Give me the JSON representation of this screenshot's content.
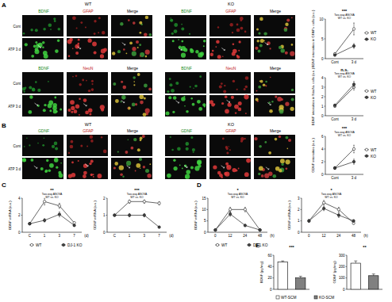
{
  "panels": [
    {
      "label": "A",
      "groups": [
        {
          "title": "WT",
          "columns": [
            "BDNF",
            "GFAP",
            "Merge"
          ]
        },
        {
          "title": "KO",
          "columns": [
            "BDNF",
            "GFAP",
            "Merge"
          ]
        }
      ],
      "rows": [
        "Cont",
        "ATP 3 d"
      ]
    },
    {
      "groups": [
        {
          "columns": [
            "BDNF",
            "NeuN",
            "Merge"
          ]
        },
        {
          "columns": [
            "BDNF",
            "NeuN",
            "Merge"
          ]
        }
      ],
      "rows": [
        "Cont",
        "ATP 3 d"
      ]
    },
    {
      "label": "B",
      "groups": [
        {
          "title": "WT",
          "columns": [
            "GDNF",
            "GFAP",
            "Merge"
          ]
        },
        {
          "title": "KO",
          "columns": [
            "GDNF",
            "GFAP",
            "Merge"
          ]
        }
      ],
      "rows": [
        "Cont",
        "ATP 3 d"
      ]
    }
  ],
  "panel_labels": [
    "C",
    "D",
    "E"
  ],
  "chart_data": [
    {
      "type": "line",
      "y_label": "BDNF intensities in GFAP+ cells (a.u.)",
      "categories": [
        "Cont",
        "3 d"
      ],
      "annotations": [
        "Two-way ANOVA",
        "WT vs. KO"
      ],
      "significance": "***",
      "legend": "right",
      "ylim": [
        0,
        10
      ],
      "yticks": [
        0,
        5,
        10
      ],
      "series": [
        {
          "name": "WT",
          "color": "#ffffff",
          "marker": "circle",
          "values": [
            1.2,
            7.5
          ],
          "errors": [
            0.3,
            1.5
          ]
        },
        {
          "name": "KO",
          "color": "#444444",
          "marker": "circle",
          "values": [
            0.9,
            3.2
          ],
          "errors": [
            0.2,
            0.6
          ]
        }
      ]
    },
    {
      "type": "line",
      "y_label": "BDNF intensities in NeuN+ cells (a.u.)",
      "categories": [
        "Cont",
        "3 d"
      ],
      "annotations": [
        "Two-way ANOVA",
        "WT vs. KO"
      ],
      "significance": "n.s.",
      "legend": "right",
      "ylim": [
        0,
        4
      ],
      "yticks": [
        0,
        1,
        2,
        3,
        4
      ],
      "series": [
        {
          "name": "WT",
          "color": "#ffffff",
          "marker": "circle",
          "values": [
            1,
            3
          ],
          "errors": [
            0.1,
            0.3
          ]
        },
        {
          "name": "KO",
          "color": "#444444",
          "marker": "circle",
          "values": [
            1.1,
            3.3
          ],
          "errors": [
            0.1,
            0.3
          ]
        }
      ]
    },
    {
      "type": "line",
      "y_label": "GDNF intensities (a.u.)",
      "categories": [
        "Cont",
        "3 d"
      ],
      "annotations": [
        "Two-way ANOVA",
        "WT vs. KO"
      ],
      "significance": "***",
      "legend": "right",
      "ylim": [
        0,
        6
      ],
      "yticks": [
        0,
        2,
        4,
        6
      ],
      "series": [
        {
          "name": "WT",
          "color": "#ffffff",
          "marker": "circle",
          "values": [
            1,
            4
          ],
          "errors": [
            0.2,
            0.6
          ]
        },
        {
          "name": "KO",
          "color": "#444444",
          "marker": "circle",
          "values": [
            1,
            2
          ],
          "errors": [
            0.2,
            0.4
          ]
        }
      ]
    },
    {
      "type": "line",
      "y_label": "BDNF mRNA (a.u.)",
      "x_label": "(d)",
      "categories": [
        "C",
        "1",
        "3",
        "7"
      ],
      "annotations": [
        "Two-way ANOVA",
        "WT vs. KO"
      ],
      "significance": "**",
      "legend": "bottom",
      "ylim": [
        0,
        4
      ],
      "yticks": [
        0,
        2,
        4
      ],
      "series": [
        {
          "name": "WT",
          "color": "#ffffff",
          "marker": "circle",
          "values": [
            1,
            3.6,
            3.1,
            1.1
          ],
          "errors": [
            0.1,
            0.4,
            0.3,
            0.1
          ]
        },
        {
          "name": "DJ-1 KO",
          "color": "#444444",
          "marker": "circle",
          "values": [
            1,
            1.4,
            2.1,
            0.8
          ],
          "errors": [
            0.1,
            0.2,
            0.3,
            0.1
          ]
        }
      ]
    },
    {
      "type": "line",
      "y_label": "GDNF mRNA (a.u.)",
      "x_label": "(d)",
      "categories": [
        "C",
        "1",
        "3",
        "7"
      ],
      "annotations": [
        "Two-way ANOVA",
        "WT vs. KO"
      ],
      "significance": "***",
      "ylim": [
        0,
        2
      ],
      "yticks": [
        0,
        1,
        2
      ],
      "series": [
        {
          "name": "WT",
          "color": "#ffffff",
          "marker": "circle",
          "values": [
            1,
            1.8,
            1.8,
            1.7
          ],
          "errors": [
            0.05,
            0.1,
            0.1,
            0.1
          ]
        },
        {
          "name": "DJ-1 KO",
          "color": "#444444",
          "marker": "circle",
          "values": [
            1,
            1,
            1,
            0.3
          ],
          "errors": [
            0.05,
            0.1,
            0.1,
            0.05
          ]
        }
      ]
    },
    {
      "type": "line",
      "y_label": "BDNF mRNA (a.u.)",
      "x_label": "(h)",
      "categories": [
        "0",
        "12",
        "24",
        "48"
      ],
      "annotations": [
        "Two-way ANOVA",
        "WT vs. KO"
      ],
      "significance": "*",
      "legend": "bottom",
      "ylim": [
        0,
        15
      ],
      "yticks": [
        0,
        5,
        10,
        15
      ],
      "series": [
        {
          "name": "WT",
          "color": "#ffffff",
          "marker": "circle",
          "values": [
            1,
            10,
            10,
            1
          ],
          "errors": [
            0.2,
            1,
            1,
            0.2
          ]
        },
        {
          "name": "DJ-1 KO",
          "color": "#444444",
          "marker": "circle",
          "values": [
            1,
            8,
            3,
            1
          ],
          "errors": [
            0.2,
            1,
            0.5,
            0.2
          ]
        }
      ]
    },
    {
      "type": "line",
      "y_label": "GDNF mRNA (a.u.)",
      "x_label": "(h)",
      "categories": [
        "0",
        "12",
        "24",
        "48"
      ],
      "annotations": [
        "Two-way ANOVA",
        "WT vs. KO"
      ],
      "significance": "*",
      "ylim": [
        0,
        3
      ],
      "yticks": [
        0,
        1,
        2,
        3
      ],
      "series": [
        {
          "name": "WT",
          "color": "#ffffff",
          "marker": "circle",
          "values": [
            1,
            2.6,
            2,
            0.8
          ],
          "errors": [
            0.1,
            0.2,
            0.2,
            0.1
          ]
        },
        {
          "name": "DJ-1 KO",
          "color": "#444444",
          "marker": "circle",
          "values": [
            1,
            2.1,
            1.5,
            1
          ],
          "errors": [
            0.1,
            0.2,
            0.2,
            0.1
          ]
        }
      ]
    },
    {
      "type": "bar",
      "y_label": "BDNF (pg/mg)",
      "categories": [
        "WT-SCM",
        "KO-SCM"
      ],
      "values": [
        48,
        20
      ],
      "errors": [
        2,
        3
      ],
      "colors": [
        "#ffffff",
        "#808080"
      ],
      "significance": "***",
      "legend": "bottom",
      "tick_labels": "y",
      "ylim": [
        0,
        60
      ],
      "yticks": [
        0,
        20,
        40,
        60
      ]
    },
    {
      "type": "bar",
      "y_label": "GDNF (pg/mg)",
      "categories": [
        "WT-SCM",
        "KO-SCM"
      ],
      "values": [
        230,
        120
      ],
      "errors": [
        20,
        15
      ],
      "colors": [
        "#ffffff",
        "#808080"
      ],
      "significance": "**",
      "tick_labels": "y",
      "ylim": [
        0,
        300
      ],
      "yticks": [
        0,
        100,
        200,
        300
      ]
    }
  ]
}
